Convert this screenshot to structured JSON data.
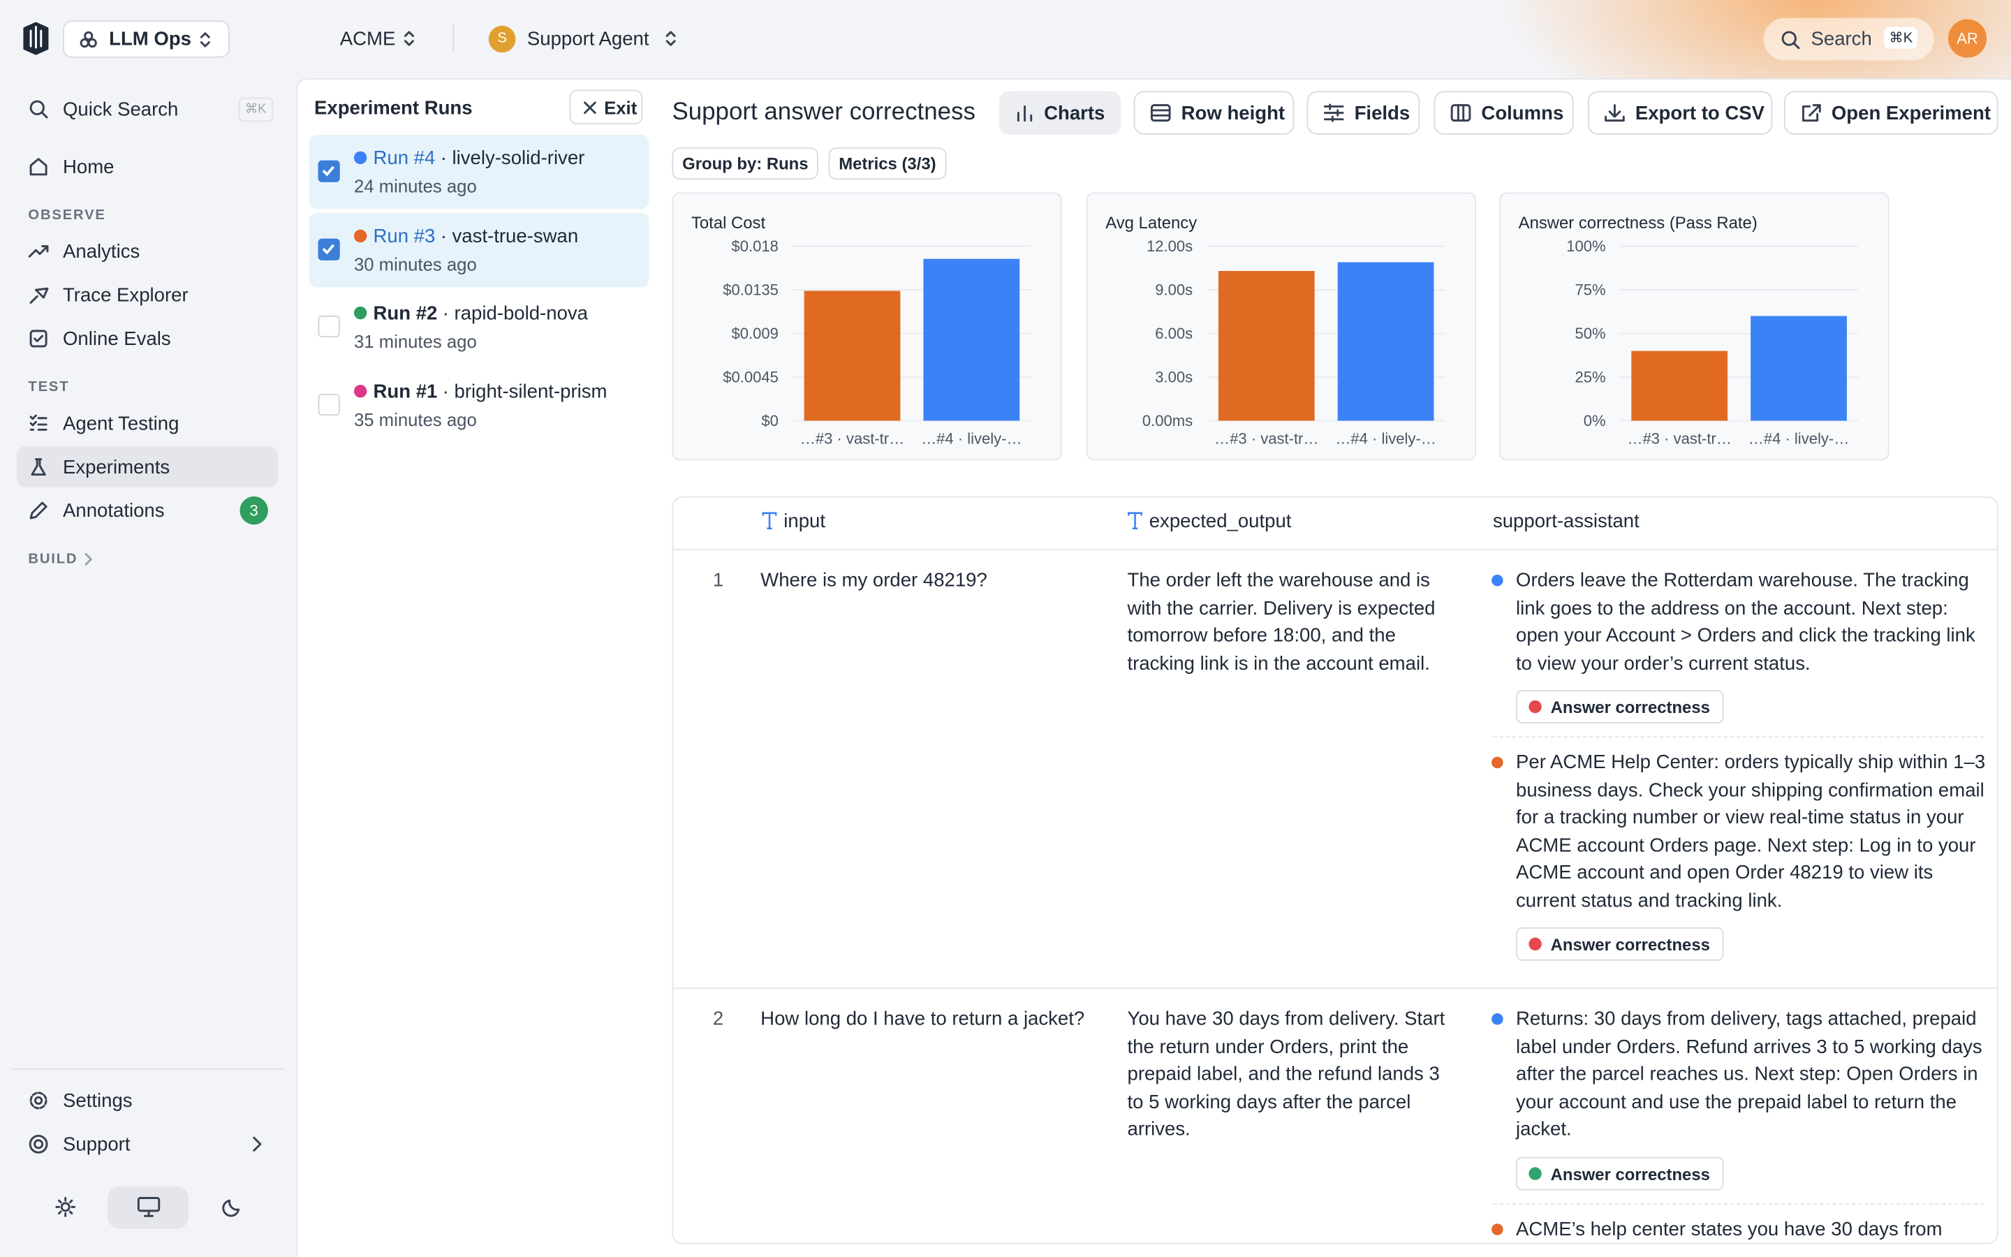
{
  "topbar": {
    "workspace": "LLM Ops",
    "org": "ACME",
    "agent_initial": "S",
    "agent": "Support Agent",
    "search": "Search",
    "search_shortcut": "⌘K",
    "avatar": "AR"
  },
  "sidebar": {
    "quick_search": "Quick Search",
    "quick_search_shortcut": "⌘K",
    "home": "Home",
    "observe": "OBSERVE",
    "analytics": "Analytics",
    "trace_explorer": "Trace Explorer",
    "online_evals": "Online Evals",
    "test": "TEST",
    "agent_testing": "Agent Testing",
    "experiments": "Experiments",
    "annotations": "Annotations",
    "annotations_count": "3",
    "build": "BUILD",
    "settings": "Settings",
    "support": "Support"
  },
  "runs_panel": {
    "title": "Experiment Runs",
    "exit": "Exit",
    "runs": [
      {
        "run": "Run #4",
        "name": "· lively-solid-river",
        "time": "24 minutes ago",
        "color": "#3b82f6",
        "selected": true
      },
      {
        "run": "Run #3",
        "name": "· vast-true-swan",
        "time": "30 minutes ago",
        "color": "#e5672a",
        "selected": true
      },
      {
        "run": "Run #2",
        "name": "· rapid-bold-nova",
        "time": "31 minutes ago",
        "color": "#2f9e5e",
        "selected": false
      },
      {
        "run": "Run #1",
        "name": "· bright-silent-prism",
        "time": "35 minutes ago",
        "color": "#e0368a",
        "selected": false
      }
    ]
  },
  "main": {
    "title": "Support answer correctness",
    "toolbar": [
      "Charts",
      "Row height",
      "Fields",
      "Columns",
      "Export to CSV",
      "Open Experiment"
    ],
    "group_by": "Group by: Runs",
    "metrics": "Metrics (3/3)"
  },
  "chart_data": [
    {
      "type": "bar",
      "title": "Total Cost",
      "categories": [
        "…#3 · vast-tr…",
        "…#4 · lively-…"
      ],
      "values": [
        0.0134,
        0.0167
      ],
      "colors": [
        "#e06a22",
        "#3b82f6"
      ],
      "ylim": [
        0,
        0.018
      ],
      "yticks": [
        {
          "value": 0,
          "label": "$0"
        },
        {
          "value": 0.0045,
          "label": "$0.0045"
        },
        {
          "value": 0.009,
          "label": "$0.009"
        },
        {
          "value": 0.0135,
          "label": "$0.0135"
        },
        {
          "value": 0.018,
          "label": "$0.018"
        }
      ],
      "grid": true
    },
    {
      "type": "bar",
      "title": "Avg Latency",
      "categories": [
        "…#3 · vast-tr…",
        "…#4 · lively-…"
      ],
      "values": [
        10.3,
        10.9
      ],
      "colors": [
        "#e06a22",
        "#3b82f6"
      ],
      "ylim": [
        0,
        12
      ],
      "yticks": [
        {
          "value": 0,
          "label": "0.00ms"
        },
        {
          "value": 3,
          "label": "3.00s"
        },
        {
          "value": 6,
          "label": "6.00s"
        },
        {
          "value": 9,
          "label": "9.00s"
        },
        {
          "value": 12,
          "label": "12.00s"
        }
      ],
      "grid": true
    },
    {
      "type": "bar",
      "title": "Answer correctness (Pass Rate)",
      "categories": [
        "…#3 · vast-tr…",
        "…#4 · lively-…"
      ],
      "values": [
        40,
        60
      ],
      "colors": [
        "#e06a22",
        "#3b82f6"
      ],
      "ylim": [
        0,
        100
      ],
      "yticks": [
        {
          "value": 0,
          "label": "0%"
        },
        {
          "value": 25,
          "label": "25%"
        },
        {
          "value": 50,
          "label": "50%"
        },
        {
          "value": 75,
          "label": "75%"
        },
        {
          "value": 100,
          "label": "100%"
        }
      ],
      "grid": true
    }
  ],
  "table": {
    "columns": [
      "input",
      "expected_output",
      "support-assistant"
    ],
    "rows": [
      {
        "index": "1",
        "input": "Where is my order 48219?",
        "expected_output": "The order left the warehouse and is with the carrier. Delivery is expected tomorrow before 18:00, and the tracking link is in the account email.",
        "outputs": [
          {
            "color": "#3b82f6",
            "text": "Orders leave the Rotterdam warehouse. The tracking link goes to the address on the account. Next step: open your Account > Orders and click the tracking link to view your order’s current status.",
            "eval": "Answer correctness",
            "eval_color": "#e5484d"
          },
          {
            "color": "#e5672a",
            "text": "Per ACME Help Center: orders typically ship within 1–3 business days. Check your shipping confirmation email for a tracking number or view real-time status in your ACME account Orders page. Next step: Log in to your ACME account and open Order 48219 to view its current status and tracking link.",
            "eval": "Answer correctness",
            "eval_color": "#e5484d"
          }
        ]
      },
      {
        "index": "2",
        "input": "How long do I have to return a jacket?",
        "expected_output": "You have 30 days from delivery. Start the return under Orders, print the prepaid label, and the refund lands 3 to 5 working days after the parcel arrives.",
        "outputs": [
          {
            "color": "#3b82f6",
            "text": "Returns: 30 days from delivery, tags attached, prepaid label under Orders. Refund arrives 3 to 5 working days after the parcel reaches us. Next step: Open Orders in your account and use the prepaid label to return the jacket.",
            "eval": "Answer correctness",
            "eval_color": "#30a46c"
          },
          {
            "color": "#e5672a",
            "text": "ACME’s help center states you have 30 days from"
          }
        ]
      }
    ]
  }
}
